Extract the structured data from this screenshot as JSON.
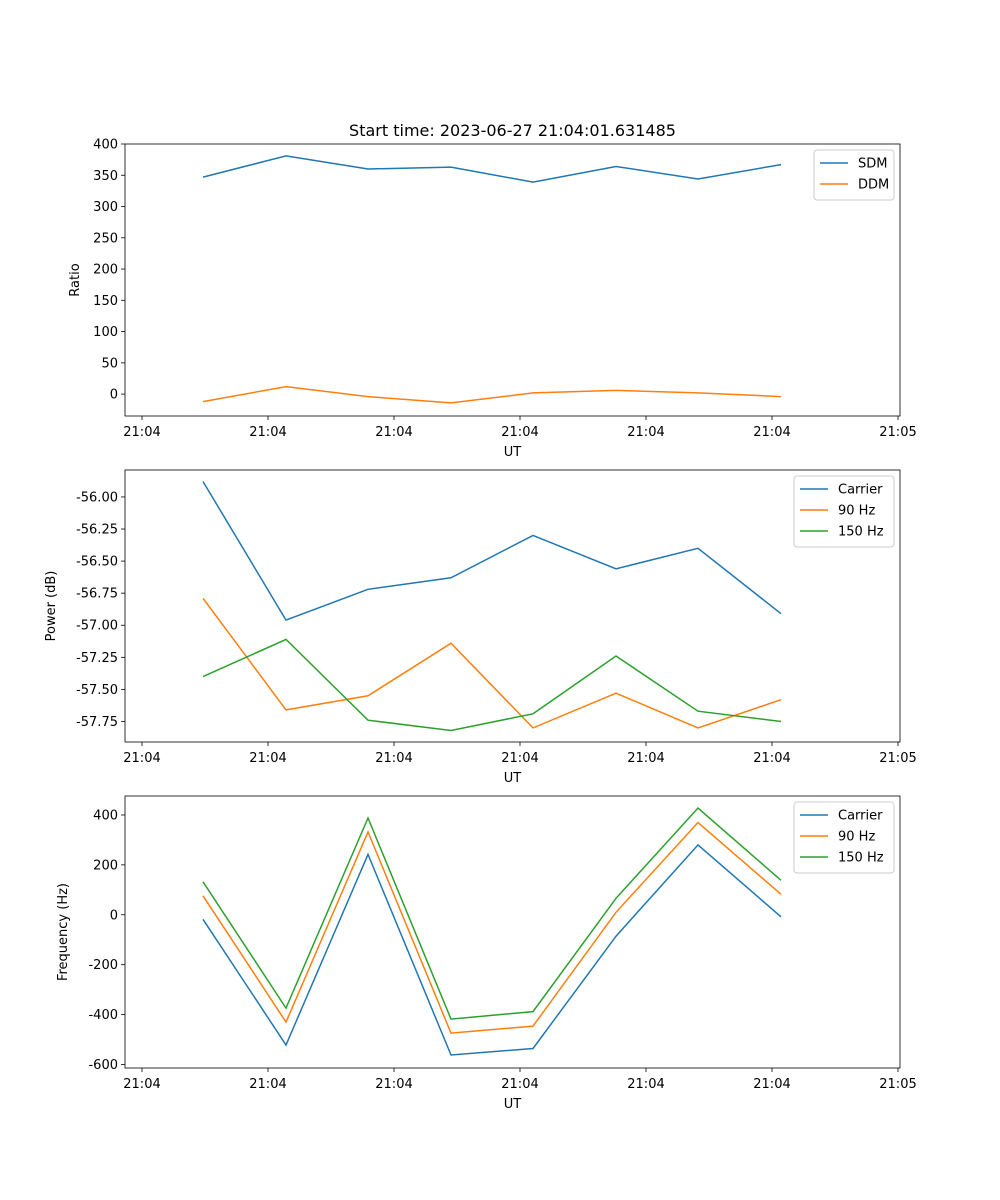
{
  "figure_title": "Start time: 2023-06-27 21:04:01.631485",
  "colors": {
    "blue": "#1f77b4",
    "orange": "#ff7f0e",
    "green": "#2ca02c"
  },
  "chart_data": [
    {
      "type": "line",
      "title": "Start time: 2023-06-27 21:04:01.631485",
      "xlabel": "UT",
      "ylabel": "Ratio",
      "x_ticks": [
        "21:04",
        "21:04",
        "21:04",
        "21:04",
        "21:04",
        "21:04",
        "21:05"
      ],
      "y_ticks": [
        "0",
        "50",
        "100",
        "150",
        "200",
        "250",
        "300",
        "350",
        "400"
      ],
      "ylim": [
        -35,
        400
      ],
      "legend_position": "top-right",
      "series": [
        {
          "name": "SDM",
          "color": "#1f77b4",
          "values": [
            347,
            381,
            360,
            363,
            339,
            364,
            344,
            367
          ]
        },
        {
          "name": "DDM",
          "color": "#ff7f0e",
          "values": [
            -12,
            12,
            -4,
            -14,
            2,
            6,
            2,
            -4
          ]
        }
      ]
    },
    {
      "type": "line",
      "title": "",
      "xlabel": "UT",
      "ylabel": "Power (dB)",
      "x_ticks": [
        "21:04",
        "21:04",
        "21:04",
        "21:04",
        "21:04",
        "21:04",
        "21:05"
      ],
      "y_ticks": [
        "-56.00",
        "-56.25",
        "-56.50",
        "-56.75",
        "-57.00",
        "-57.25",
        "-57.50",
        "-57.75"
      ],
      "ylim": [
        -57.91,
        -55.79
      ],
      "legend_position": "top-right",
      "series": [
        {
          "name": "Carrier",
          "color": "#1f77b4",
          "values": [
            -55.88,
            -56.96,
            -56.72,
            -56.63,
            -56.3,
            -56.56,
            -56.4,
            -56.91
          ]
        },
        {
          "name": "90 Hz",
          "color": "#ff7f0e",
          "values": [
            -56.79,
            -57.66,
            -57.55,
            -57.14,
            -57.8,
            -57.53,
            -57.8,
            -57.58
          ]
        },
        {
          "name": "150 Hz",
          "color": "#2ca02c",
          "values": [
            -57.4,
            -57.11,
            -57.74,
            -57.82,
            -57.69,
            -57.24,
            -57.67,
            -57.75
          ]
        }
      ]
    },
    {
      "type": "line",
      "title": "",
      "xlabel": "UT",
      "ylabel": "Frequency (Hz)",
      "x_ticks": [
        "21:04",
        "21:04",
        "21:04",
        "21:04",
        "21:04",
        "21:04",
        "21:05"
      ],
      "y_ticks": [
        "400",
        "200",
        "0",
        "-200",
        "-400",
        "-600"
      ],
      "ylim": [
        -614,
        476
      ],
      "legend_position": "top-right",
      "series": [
        {
          "name": "Carrier",
          "color": "#1f77b4",
          "values": [
            -18,
            -522,
            242,
            -562,
            -536,
            -86,
            280,
            -8
          ]
        },
        {
          "name": "90 Hz",
          "color": "#ff7f0e",
          "values": [
            76,
            -430,
            332,
            -474,
            -446,
            10,
            370,
            82
          ]
        },
        {
          "name": "150 Hz",
          "color": "#2ca02c",
          "values": [
            132,
            -374,
            388,
            -418,
            -388,
            66,
            428,
            138
          ]
        }
      ]
    }
  ]
}
